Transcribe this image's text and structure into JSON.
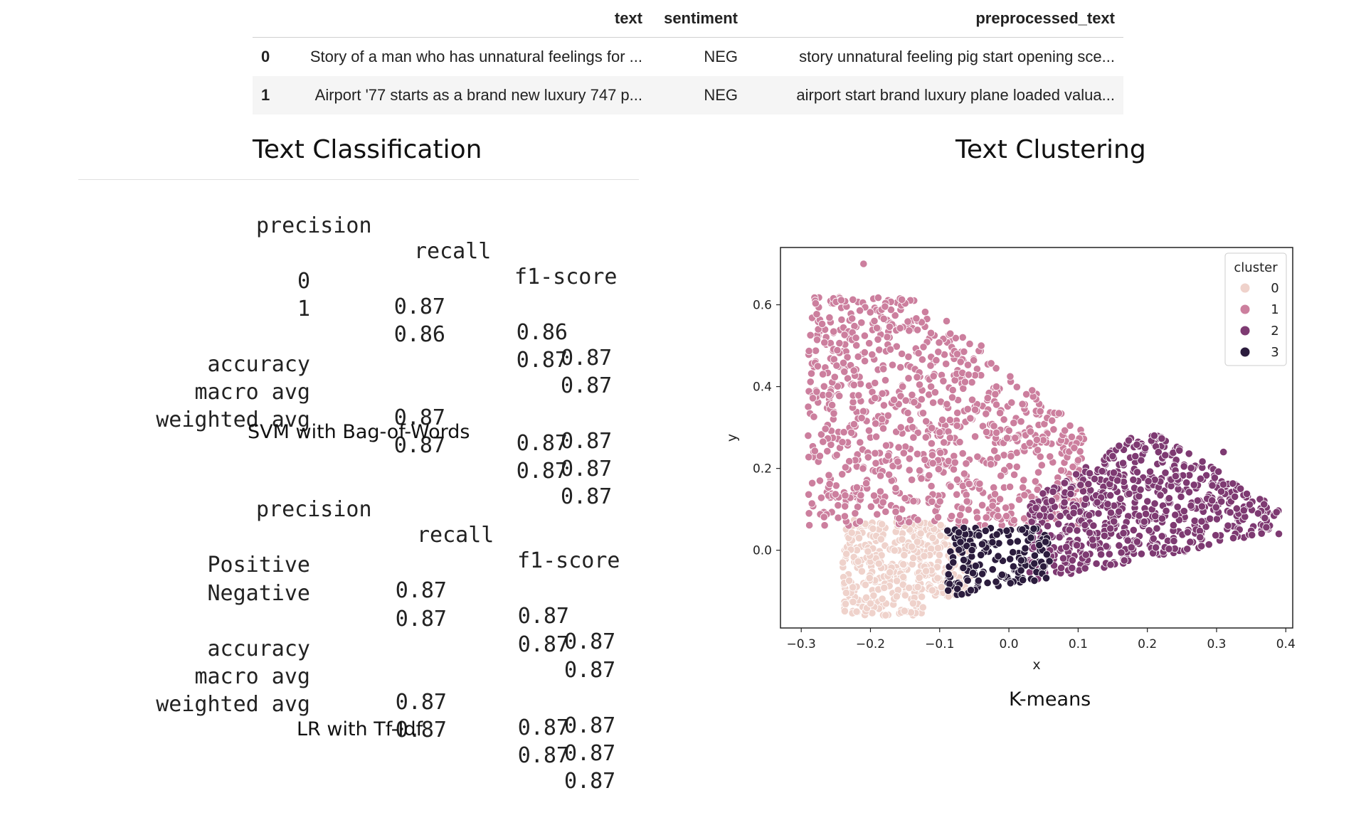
{
  "dataframe": {
    "columns": [
      "",
      "text",
      "sentiment",
      "preprocessed_text"
    ],
    "rows": [
      {
        "index": "0",
        "text": "Story of a man who has unnatural feelings for ...",
        "sentiment": "NEG",
        "preprocessed_text": "story unnatural feeling pig start opening sce..."
      },
      {
        "index": "1",
        "text": "Airport '77 starts as a brand new luxury 747 p...",
        "sentiment": "NEG",
        "preprocessed_text": "airport start brand luxury plane loaded valua..."
      }
    ]
  },
  "classification": {
    "title": "Text Classification",
    "reports": [
      {
        "caption": "SVM with Bag-of-Words",
        "headers": [
          "precision",
          "recall",
          "f1-score"
        ],
        "rows": [
          {
            "label": "0",
            "values": [
              "0.87",
              "0.86",
              "0.87"
            ]
          },
          {
            "label": "1",
            "values": [
              "0.86",
              "0.87",
              "0.87"
            ]
          },
          {
            "label": "accuracy",
            "values": [
              "",
              "",
              "0.87"
            ]
          },
          {
            "label": "macro avg",
            "values": [
              "0.87",
              "0.87",
              "0.87"
            ]
          },
          {
            "label": "weighted avg",
            "values": [
              "0.87",
              "0.87",
              "0.87"
            ]
          }
        ]
      },
      {
        "caption": "LR with Tf-Idf",
        "headers": [
          "precision",
          "recall",
          "f1-score"
        ],
        "rows": [
          {
            "label": "Positive",
            "values": [
              "0.87",
              "0.87",
              "0.87"
            ]
          },
          {
            "label": "Negative",
            "values": [
              "0.87",
              "0.87",
              "0.87"
            ]
          },
          {
            "label": "accuracy",
            "values": [
              "",
              "",
              "0.87"
            ]
          },
          {
            "label": "macro avg",
            "values": [
              "0.87",
              "0.87",
              "0.87"
            ]
          },
          {
            "label": "weighted avg",
            "values": [
              "0.87",
              "0.87",
              "0.87"
            ]
          }
        ]
      }
    ]
  },
  "clustering": {
    "title": "Text Clustering",
    "caption": "K-means"
  },
  "chart_data": {
    "type": "scatter",
    "title": "",
    "xlabel": "x",
    "ylabel": "y",
    "xlim": [
      -0.33,
      0.41
    ],
    "ylim": [
      -0.19,
      0.74
    ],
    "xticks": [
      "−0.3",
      "−0.2",
      "−0.1",
      "0.0",
      "0.1",
      "0.2",
      "0.3",
      "0.4"
    ],
    "xtick_values": [
      -0.3,
      -0.2,
      -0.1,
      0.0,
      0.1,
      0.2,
      0.3,
      0.4
    ],
    "yticks": [
      "0.0",
      "0.2",
      "0.4",
      "0.6"
    ],
    "ytick_values": [
      0.0,
      0.2,
      0.4,
      0.6
    ],
    "grid": false,
    "legend": {
      "title": "cluster",
      "placement": "top-right"
    },
    "series": [
      {
        "name": "0",
        "color": "#efd2cb",
        "x_range": [
          -0.24,
          -0.05
        ],
        "y_range": [
          -0.16,
          0.09
        ],
        "points": [
          [
            -0.22,
            -0.15
          ],
          [
            -0.24,
            -0.03
          ],
          [
            -0.2,
            -0.13
          ],
          [
            -0.15,
            0.06
          ],
          [
            -0.06,
            -0.1
          ]
        ]
      },
      {
        "name": "1",
        "color": "#cc7f9e",
        "x_range": [
          -0.29,
          0.11
        ],
        "y_range": [
          0.05,
          0.7
        ],
        "points": [
          [
            -0.21,
            0.7
          ],
          [
            -0.09,
            0.56
          ],
          [
            -0.26,
            0.38
          ],
          [
            -0.29,
            0.28
          ],
          [
            -0.04,
            0.5
          ],
          [
            0.1,
            0.22
          ]
        ]
      },
      {
        "name": "2",
        "color": "#7e3a72",
        "x_range": [
          0.02,
          0.39
        ],
        "y_range": [
          -0.08,
          0.28
        ],
        "points": [
          [
            0.21,
            0.28
          ],
          [
            0.39,
            0.04
          ],
          [
            0.36,
            0.09
          ],
          [
            0.31,
            0.24
          ],
          [
            0.15,
            0.23
          ]
        ]
      },
      {
        "name": "3",
        "color": "#2b1c3d",
        "x_range": [
          -0.09,
          0.06
        ],
        "y_range": [
          -0.12,
          0.06
        ],
        "points": [
          [
            -0.07,
            0.02
          ],
          [
            0.05,
            -0.04
          ],
          [
            -0.01,
            -0.06
          ]
        ]
      }
    ]
  }
}
